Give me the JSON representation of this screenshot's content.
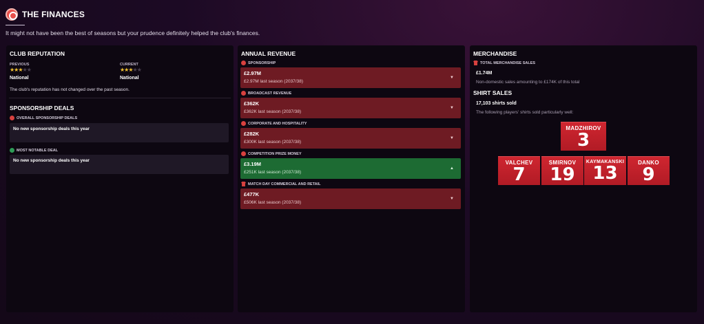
{
  "header": {
    "title": "THE FINANCES",
    "subtitle": "It might not have been the best of seasons but your prudence definitely helped the club's finances."
  },
  "reputation": {
    "title": "CLUB REPUTATION",
    "previous_label": "PREVIOUS",
    "previous_stars": 3,
    "previous_value": "National",
    "current_label": "CURRENT",
    "current_stars": 3,
    "current_value": "National",
    "note": "The club's reputation has not changed over the past season."
  },
  "sponsorship": {
    "title": "SPONSORSHIP DEALS",
    "overall_label": "OVERALL SPONSORSHIP DEALS",
    "overall_value": "No new sponsorship deals this year",
    "notable_label": "MOST NOTABLE DEAL",
    "notable_value": "No new sponsorship deals this year"
  },
  "revenue": {
    "title": "ANNUAL REVENUE",
    "items": [
      {
        "label": "SPONSORSHIP",
        "amount": "£2.97M",
        "last": "£2.97M last season (2037/38)",
        "trend": "down",
        "color": "#6e1b23"
      },
      {
        "label": "BROADCAST REVENUE",
        "amount": "£362K",
        "last": "£362K last season (2037/38)",
        "trend": "down",
        "color": "#6e1b23"
      },
      {
        "label": "CORPORATE AND HOSPITALITY",
        "amount": "£282K",
        "last": "£300K last season (2037/38)",
        "trend": "down",
        "color": "#6e1b23"
      },
      {
        "label": "COMPETITION PRIZE MONEY",
        "amount": "£3.19M",
        "last": "£251K last season (2037/38)",
        "trend": "up",
        "color": "#1d6b33"
      },
      {
        "label": "MATCH DAY COMMERCIAL AND RETAIL",
        "amount": "£477K",
        "last": "£506K last season (2037/38)",
        "trend": "down",
        "color": "#6e1b23"
      }
    ]
  },
  "merchandise": {
    "title": "MERCHANDISE",
    "total_label": "TOTAL MERCHANDISE SALES",
    "total_value": "£1.74M",
    "total_note": "Non-domestic sales amounting to £174K of this total",
    "shirts_title": "SHIRT SALES",
    "shirts_sold": "17,103 shirts sold",
    "shirts_note": "The following players' shirts sold particularly well:",
    "players": [
      {
        "name": "MADZHIROV",
        "number": "3"
      },
      {
        "name": "VALCHEV",
        "number": "7"
      },
      {
        "name": "SMIRNOV",
        "number": "19"
      },
      {
        "name": "KAYMAKANSKI",
        "number": "13"
      },
      {
        "name": "DANKO",
        "number": "9"
      }
    ]
  }
}
